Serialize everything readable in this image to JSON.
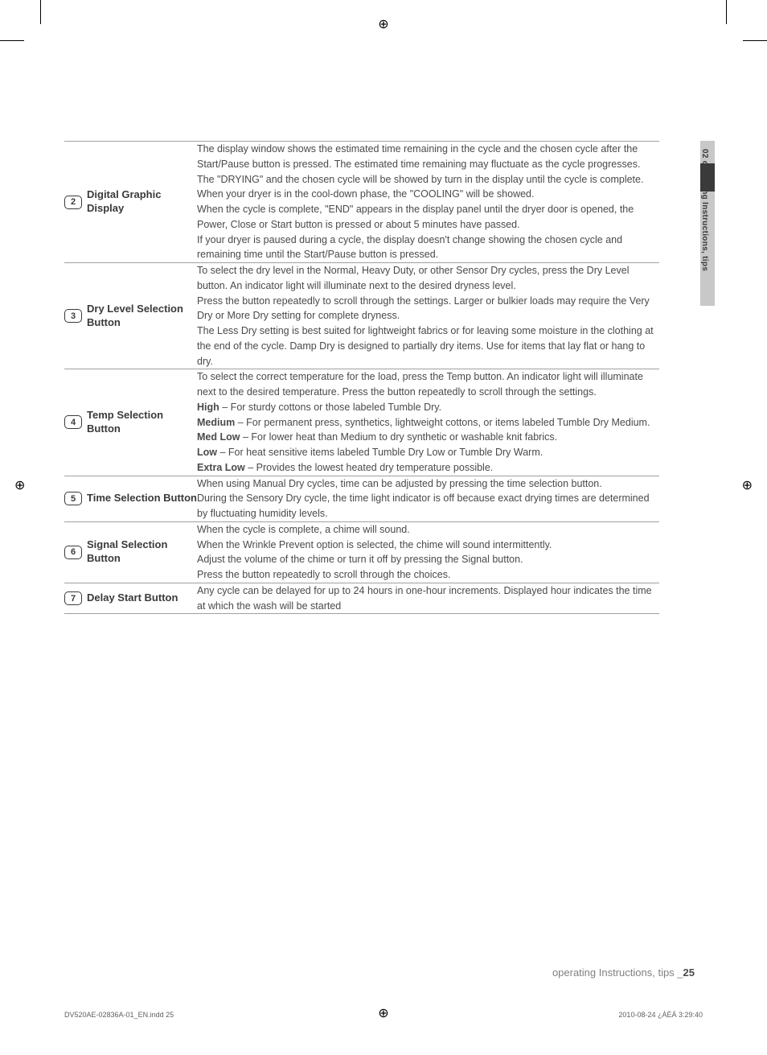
{
  "registration_glyph": "⊕",
  "side_tab": {
    "text": "02 operating Instructions, tips"
  },
  "rows": [
    {
      "num": "2",
      "label": "Digital Graphic Display",
      "paragraphs": [
        {
          "text": "The display window shows the estimated time remaining in the cycle and the chosen cycle after the Start/Pause button is pressed. The estimated time remaining may fluctuate as the cycle progresses."
        },
        {
          "text": "The \"DRYING\" and the chosen cycle will be showed by turn in the display until the cycle is complete."
        },
        {
          "text": "When your dryer is in the cool-down phase, the \"COOLING\" will be showed."
        },
        {
          "text": "When the cycle is complete, \"END\" appears in the display panel until the dryer door is opened, the Power, Close or Start button is pressed or about 5 minutes have passed."
        },
        {
          "text": "If your dryer is paused during a cycle, the display doesn't change showing the chosen cycle and remaining time until the Start/Pause button is pressed."
        }
      ]
    },
    {
      "num": "3",
      "label": "Dry Level Selection Button",
      "paragraphs": [
        {
          "text": "To select the dry level in the Normal, Heavy Duty, or other Sensor Dry cycles, press the Dry Level button. An indicator light will illuminate next to the desired dryness level."
        },
        {
          "text": "Press the button repeatedly to scroll through the settings. Larger or bulkier loads may require the Very Dry or More Dry setting for complete dryness."
        },
        {
          "text": "The Less Dry setting is best suited for lightweight fabrics or for leaving some moisture in the clothing at the end of the cycle. Damp Dry is designed to partially dry items. Use for items that lay flat or hang to dry."
        }
      ]
    },
    {
      "num": "4",
      "label": "Temp Selection Button",
      "paragraphs": [
        {
          "text": "To select the correct temperature for the load, press the Temp button. An indicator light will illuminate next to the desired temperature. Press the button repeatedly to scroll through the settings."
        },
        {
          "bold": "High",
          "text": " – For sturdy cottons or those labeled Tumble Dry."
        },
        {
          "bold": "Medium",
          "text": " – For permanent press, synthetics, lightweight cottons, or items labeled Tumble Dry Medium."
        },
        {
          "bold": "Med Low",
          "text": " – For lower heat than Medium to dry synthetic or washable knit fabrics."
        },
        {
          "bold": "Low",
          "text": " – For heat sensitive items labeled Tumble Dry Low or Tumble Dry Warm."
        },
        {
          "bold": "Extra Low",
          "text": " – Provides the lowest heated dry temperature possible."
        }
      ]
    },
    {
      "num": "5",
      "label": "Time Selection Button",
      "paragraphs": [
        {
          "text": "When using Manual Dry cycles, time can be adjusted by pressing the time selection button."
        },
        {
          "text": "During the Sensory Dry cycle, the time light indicator is off because exact drying times are determined by fluctuating humidity levels."
        }
      ]
    },
    {
      "num": "6",
      "label": "Signal Selection Button",
      "paragraphs": [
        {
          "text": "When the cycle is complete, a chime will sound."
        },
        {
          "text": "When the Wrinkle Prevent option is selected, the chime will sound intermittently."
        },
        {
          "text": "Adjust the volume of the chime or turn it off by pressing the Signal button."
        },
        {
          "text": "Press the button repeatedly to scroll through the choices."
        }
      ]
    },
    {
      "num": "7",
      "label": "Delay Start Button",
      "paragraphs": [
        {
          "text": "Any cycle can be delayed for up to 24 hours in one-hour increments. Displayed hour indicates the time at which the wash will be started"
        }
      ]
    }
  ],
  "footer": {
    "text": "operating Instructions, tips _",
    "page": "25"
  },
  "doc_footer": {
    "left": "DV520AE-02836A-01_EN.indd   25",
    "right": "2010-08-24   ¿ÀÈÄ 3:29:40"
  }
}
